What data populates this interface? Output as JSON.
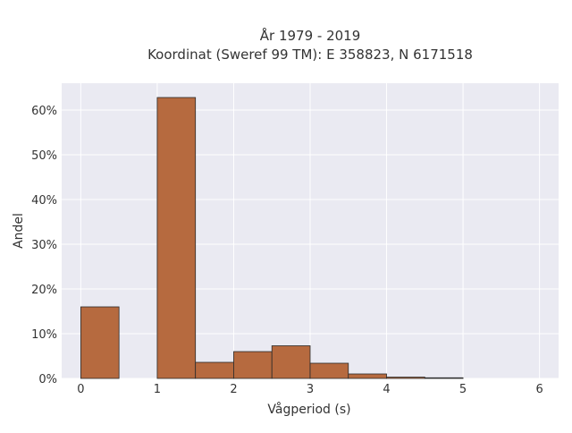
{
  "chart_data": {
    "type": "bar",
    "title_line1": "År 1979 - 2019",
    "title_line2": "Koordinat (Sweref 99 TM): E 358823, N 6171518",
    "xlabel": "Vågperiod (s)",
    "ylabel": "Andel",
    "xlim": [
      -0.25,
      6.25
    ],
    "ylim": [
      0,
      66
    ],
    "x_ticks": [
      0,
      1,
      2,
      3,
      4,
      5,
      6
    ],
    "y_ticks": [
      0,
      10,
      20,
      30,
      40,
      50,
      60
    ],
    "y_tick_suffix": "%",
    "bin_width": 0.5,
    "bins": [
      {
        "x0": 0.0,
        "x1": 0.5,
        "value": 16.0
      },
      {
        "x0": 1.0,
        "x1": 1.5,
        "value": 62.8
      },
      {
        "x0": 1.5,
        "x1": 2.0,
        "value": 3.6
      },
      {
        "x0": 2.0,
        "x1": 2.5,
        "value": 6.0
      },
      {
        "x0": 2.5,
        "x1": 3.0,
        "value": 7.3
      },
      {
        "x0": 3.0,
        "x1": 3.5,
        "value": 3.4
      },
      {
        "x0": 3.5,
        "x1": 4.0,
        "value": 1.0
      },
      {
        "x0": 4.0,
        "x1": 4.5,
        "value": 0.3
      },
      {
        "x0": 4.5,
        "x1": 5.0,
        "value": 0.15
      }
    ],
    "bar_color": "#b66a3f",
    "bar_edge_color": "#2b2b2b",
    "plot_bg_color": "#eaeaf2",
    "grid": true
  }
}
